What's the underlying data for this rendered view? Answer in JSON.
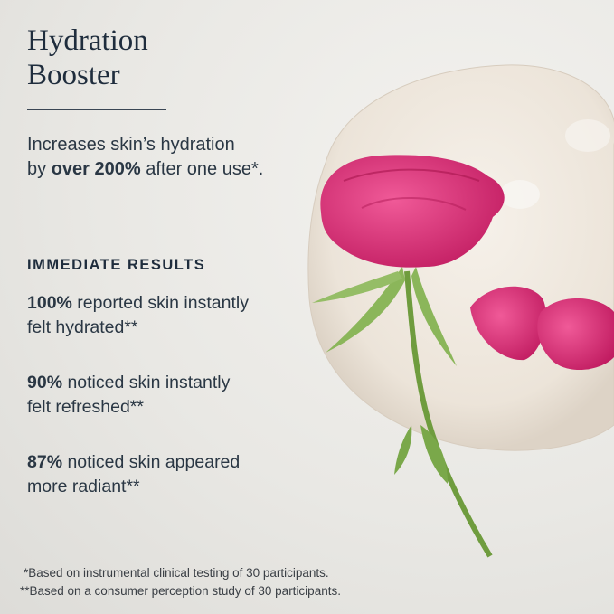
{
  "title_line1": "Hydration",
  "title_line2": "Booster",
  "subtitle": {
    "line1": "Increases skin’s hydration",
    "pre": "by ",
    "bold": "over 200%",
    "post": " after one use*."
  },
  "section_heading": "IMMEDIATE RESULTS",
  "stats": [
    {
      "value": "100%",
      "text": " reported skin instantly",
      "text2": "felt hydrated**"
    },
    {
      "value": "90%",
      "text": " noticed skin instantly",
      "text2": "felt refreshed**"
    },
    {
      "value": "87%",
      "text": " noticed skin appeared",
      "text2": "more radiant**"
    }
  ],
  "footnotes": [
    "*Based on instrumental clinical testing of 30 participants.",
    "**Based on a consumer perception study of 30 participants."
  ],
  "colors": {
    "text": "#1f2d3d",
    "rose": "#d6286e",
    "stem": "#7aa84a",
    "background": "#e9e8e4"
  }
}
